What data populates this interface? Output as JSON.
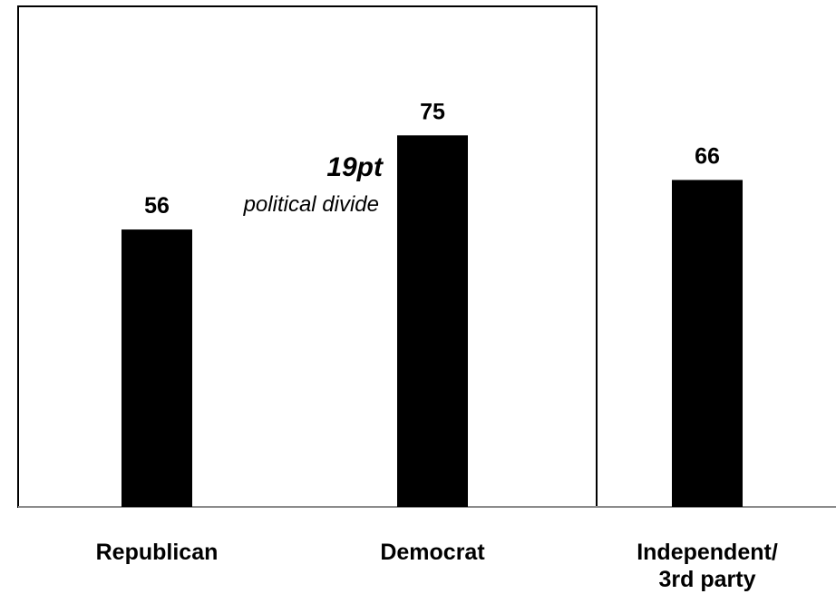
{
  "chart_data": {
    "type": "bar",
    "categories": [
      "Republican",
      "Democrat",
      "Independent/\n3rd party"
    ],
    "values": [
      56,
      75,
      66
    ],
    "data_labels": [
      "56",
      "75",
      "66"
    ],
    "ylim": [
      0,
      100
    ],
    "grid": false,
    "bar_color": "#000000",
    "annotation": {
      "highlight": "19pt",
      "text": "political divide"
    }
  }
}
